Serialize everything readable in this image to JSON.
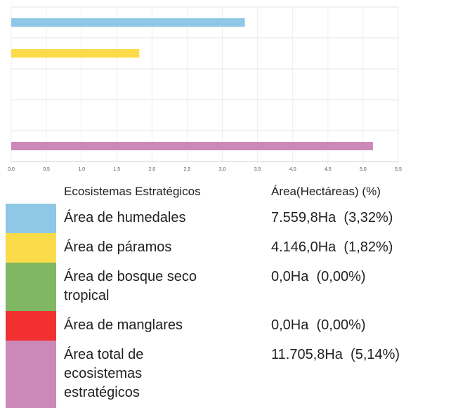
{
  "chart_data": {
    "type": "bar",
    "orientation": "horizontal",
    "categories": [
      "Área de humedales",
      "Área de páramos",
      "Área de bosque seco tropical",
      "Área de manglares",
      "Área total de ecosistemas estratégicos"
    ],
    "values": [
      3.32,
      1.82,
      0,
      0,
      5.14
    ],
    "value_labels": [
      "7.559,8Ha  (3,32%)",
      "4.146,0Ha  (1,82%)",
      "0,0Ha  (0,00%)",
      "0,0Ha  (0,00%)",
      "11.705,8Ha  (5,14%)"
    ],
    "colors": [
      "#8ec8e6",
      "#fcdb4a",
      "#7fb762",
      "#f23030",
      "#cc88b8"
    ],
    "xlim": [
      0,
      5.5
    ],
    "xticks": [
      {
        "value": 0,
        "label": "0,0"
      },
      {
        "value": 0.5,
        "label": "0,5"
      },
      {
        "value": 1,
        "label": "1,0"
      },
      {
        "value": 1.5,
        "label": "1,5"
      },
      {
        "value": 2,
        "label": "2,0"
      },
      {
        "value": 2.5,
        "label": "2,5"
      },
      {
        "value": 3,
        "label": "3,0"
      },
      {
        "value": 3.5,
        "label": "3,5"
      },
      {
        "value": 4,
        "label": "4,0"
      },
      {
        "value": 4.5,
        "label": "4,5"
      },
      {
        "value": 5,
        "label": "5,0"
      },
      {
        "value": 5.5,
        "label": "5,5"
      }
    ],
    "grid": true,
    "legend_headers": [
      "Ecosistemas Estratégicos",
      "Área(Hectáreas) (%)"
    ]
  }
}
